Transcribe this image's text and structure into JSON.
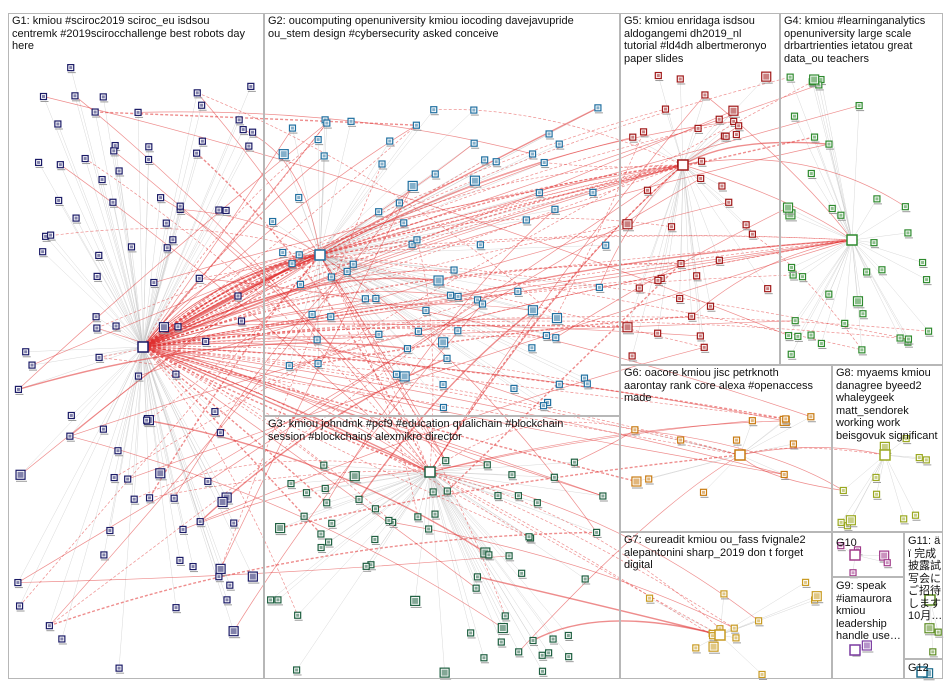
{
  "colors": {
    "background": "#ffffff",
    "panel_border": "#b7b7b7",
    "label_text": "#111111",
    "edge_between_groups": "#e03030",
    "edge_within_group": "#c8c8c8"
  },
  "groups": [
    {
      "id": "G1",
      "label": "G1: kmiou #sciroc2019 sciroc_eu isdsou\ncentremk #2019scirocchallenge best robots day\nhere",
      "node_color": "#1a1a66",
      "node_count": 95
    },
    {
      "id": "G2",
      "label": "G2: oucomputing openuniversity kmiou iocoding davejavupride\nou_stem design #cybersecurity asked conceive",
      "node_color": "#1f6fa0",
      "node_count": 80
    },
    {
      "id": "G3",
      "label": "G3: kmiou johndmk #pcf9 #education qualichain #blockchain\nsession #blockchains alexmikro director",
      "node_color": "#1e5f40",
      "node_count": 62
    },
    {
      "id": "G4",
      "label": "G4: kmiou #learninganalytics\nopenuniversity large scale\ndrbartrienties ietatou great\ndata_ou teachers",
      "node_color": "#2e8a2e",
      "node_count": 40
    },
    {
      "id": "G5",
      "label": "G5: kmiou enridaga isdsou\naldogangemi dh2019_nl\ntutorial #ld4dh albertmeronyo\npaper slides",
      "node_color": "#a01818",
      "node_count": 40
    },
    {
      "id": "G6",
      "label": "G6: oacore kmiou jisc petrknoth\naarontay rank core alexa #openaccess\nmade",
      "node_color": "#c87a10",
      "node_count": 12
    },
    {
      "id": "G7",
      "label": "G7: eureadit kmiou ou_fass fvignale2\nalepantonini sharp_2019 don t forget\ndigital",
      "node_color": "#c89a20",
      "node_count": 14
    },
    {
      "id": "G8",
      "label": "G8: myaems kmiou\ndanagree byeed2\nwhaleygeek\nmatt_sendorek\nworking work\nbeisgovuk significant",
      "node_color": "#9aa820",
      "node_count": 12
    },
    {
      "id": "G9",
      "label": "G9: speak\n#iamaurora\nkmiou\nleadership\nhandle use…",
      "node_color": "#7a3aa0",
      "node_count": 2
    },
    {
      "id": "G10",
      "label": "G10",
      "node_color": "#a03a8a",
      "node_count": 5
    },
    {
      "id": "G11",
      "label": "G11: ä\nï 完成\n披露試\n写会に\nご招待\nします\n10月…",
      "node_color": "#5a8a20",
      "node_count": 3
    },
    {
      "id": "G12",
      "label": "G12",
      "node_color": "#1a6a8a",
      "node_count": 1
    }
  ]
}
